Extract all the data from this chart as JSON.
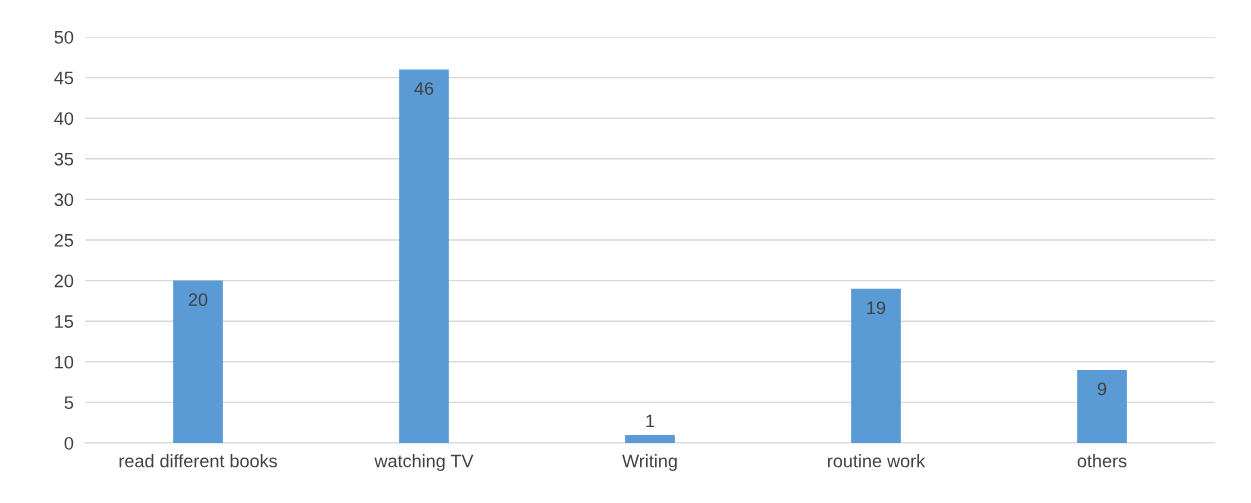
{
  "chart_data": {
    "type": "bar",
    "categories": [
      "read different books",
      "watching TV",
      "Writing",
      "routine work",
      "others"
    ],
    "values": [
      20,
      46,
      1,
      19,
      9
    ],
    "color": "#5b9bd5",
    "ylim": [
      0,
      50
    ],
    "yticks": [
      0,
      5,
      10,
      15,
      20,
      25,
      30,
      35,
      40,
      45,
      50
    ],
    "grid": "y",
    "data_labels": true
  }
}
